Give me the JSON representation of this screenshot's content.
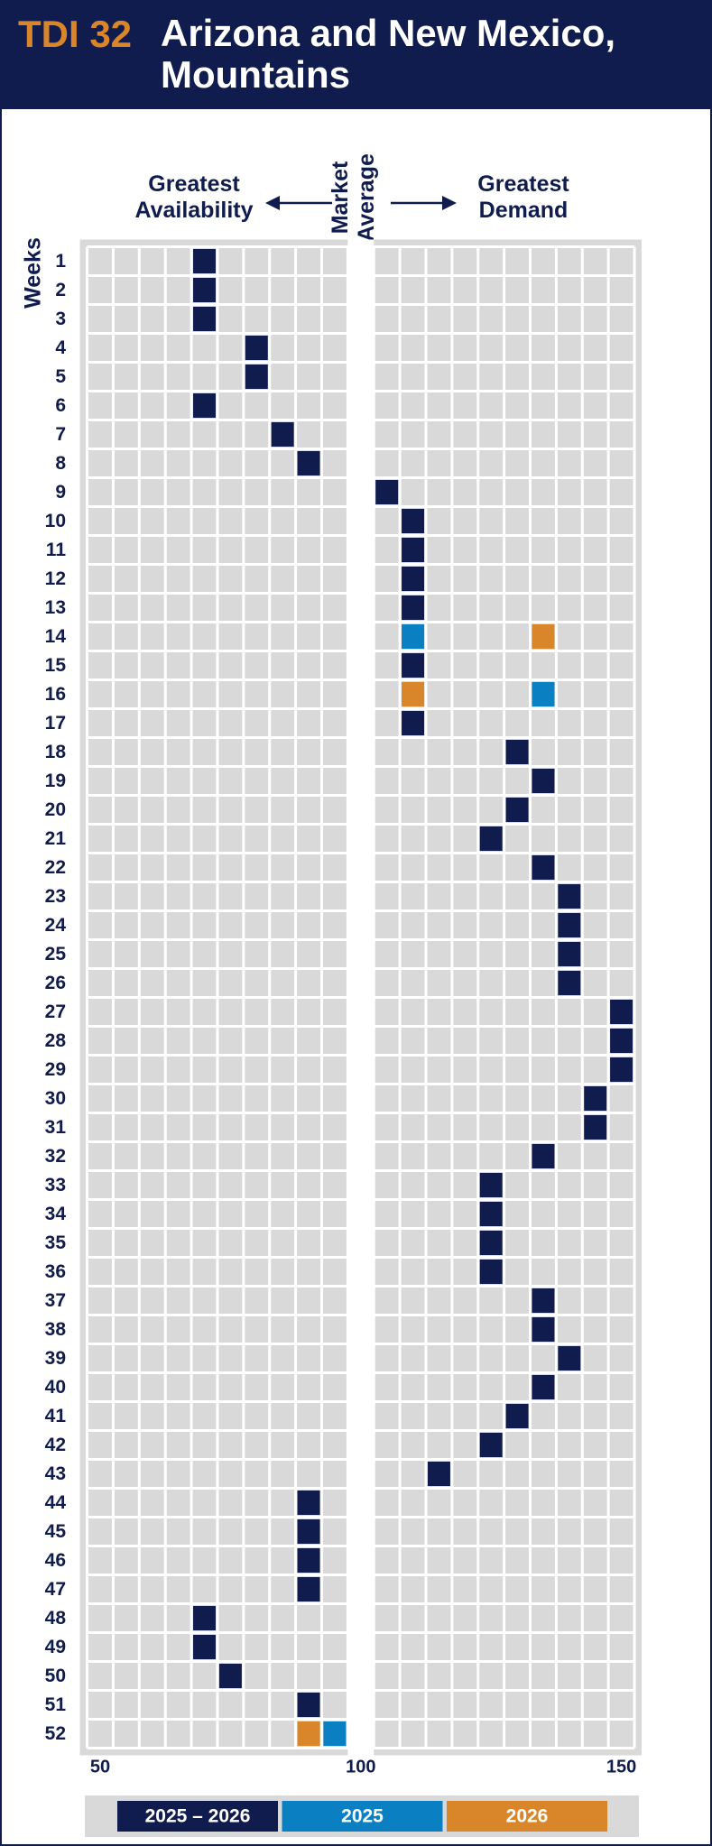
{
  "header": {
    "code": "TDI 32",
    "title": "Arizona and New Mexico, Mountains"
  },
  "chart_data": {
    "type": "dot-grid",
    "y_label": "Weeks",
    "left_label": "Greatest Availability",
    "middle_label": "Market Average",
    "right_label": "Greatest Demand",
    "categories": [
      "1",
      "2",
      "3",
      "4",
      "5",
      "6",
      "7",
      "8",
      "9",
      "10",
      "11",
      "12",
      "13",
      "14",
      "15",
      "16",
      "17",
      "18",
      "19",
      "20",
      "21",
      "22",
      "23",
      "24",
      "25",
      "26",
      "27",
      "28",
      "29",
      "30",
      "31",
      "32",
      "33",
      "34",
      "35",
      "36",
      "37",
      "38",
      "39",
      "40",
      "41",
      "42",
      "43",
      "44",
      "45",
      "46",
      "47",
      "48",
      "49",
      "50",
      "51",
      "52"
    ],
    "xlim": [
      50,
      150
    ],
    "xticks": [
      50,
      100,
      150
    ],
    "series": [
      {
        "name": "2025 – 2026",
        "color": "#0f1c4d",
        "values": [
          70,
          70,
          70,
          80,
          80,
          70,
          85,
          90,
          105,
          110,
          110,
          110,
          110,
          null,
          110,
          null,
          110,
          130,
          135,
          130,
          125,
          135,
          140,
          140,
          140,
          140,
          150,
          150,
          150,
          145,
          145,
          135,
          125,
          125,
          125,
          125,
          135,
          135,
          140,
          135,
          130,
          125,
          115,
          90,
          90,
          90,
          90,
          70,
          70,
          75,
          90,
          null
        ]
      },
      {
        "name": "2025",
        "color": "#0a7fc2",
        "values": [
          null,
          null,
          null,
          null,
          null,
          null,
          null,
          null,
          null,
          null,
          null,
          null,
          null,
          110,
          null,
          135,
          null,
          null,
          null,
          null,
          null,
          null,
          null,
          null,
          null,
          null,
          null,
          null,
          null,
          null,
          null,
          null,
          null,
          null,
          null,
          null,
          null,
          null,
          null,
          null,
          null,
          null,
          null,
          null,
          null,
          null,
          null,
          null,
          null,
          null,
          null,
          95
        ]
      },
      {
        "name": "2026",
        "color": "#d9862a",
        "values": [
          null,
          null,
          null,
          null,
          null,
          null,
          null,
          null,
          null,
          null,
          null,
          null,
          null,
          135,
          null,
          110,
          null,
          null,
          null,
          null,
          null,
          null,
          null,
          null,
          null,
          null,
          null,
          null,
          null,
          null,
          null,
          null,
          null,
          null,
          null,
          null,
          null,
          null,
          null,
          null,
          null,
          null,
          null,
          null,
          null,
          null,
          null,
          null,
          null,
          null,
          null,
          90
        ]
      }
    ]
  }
}
